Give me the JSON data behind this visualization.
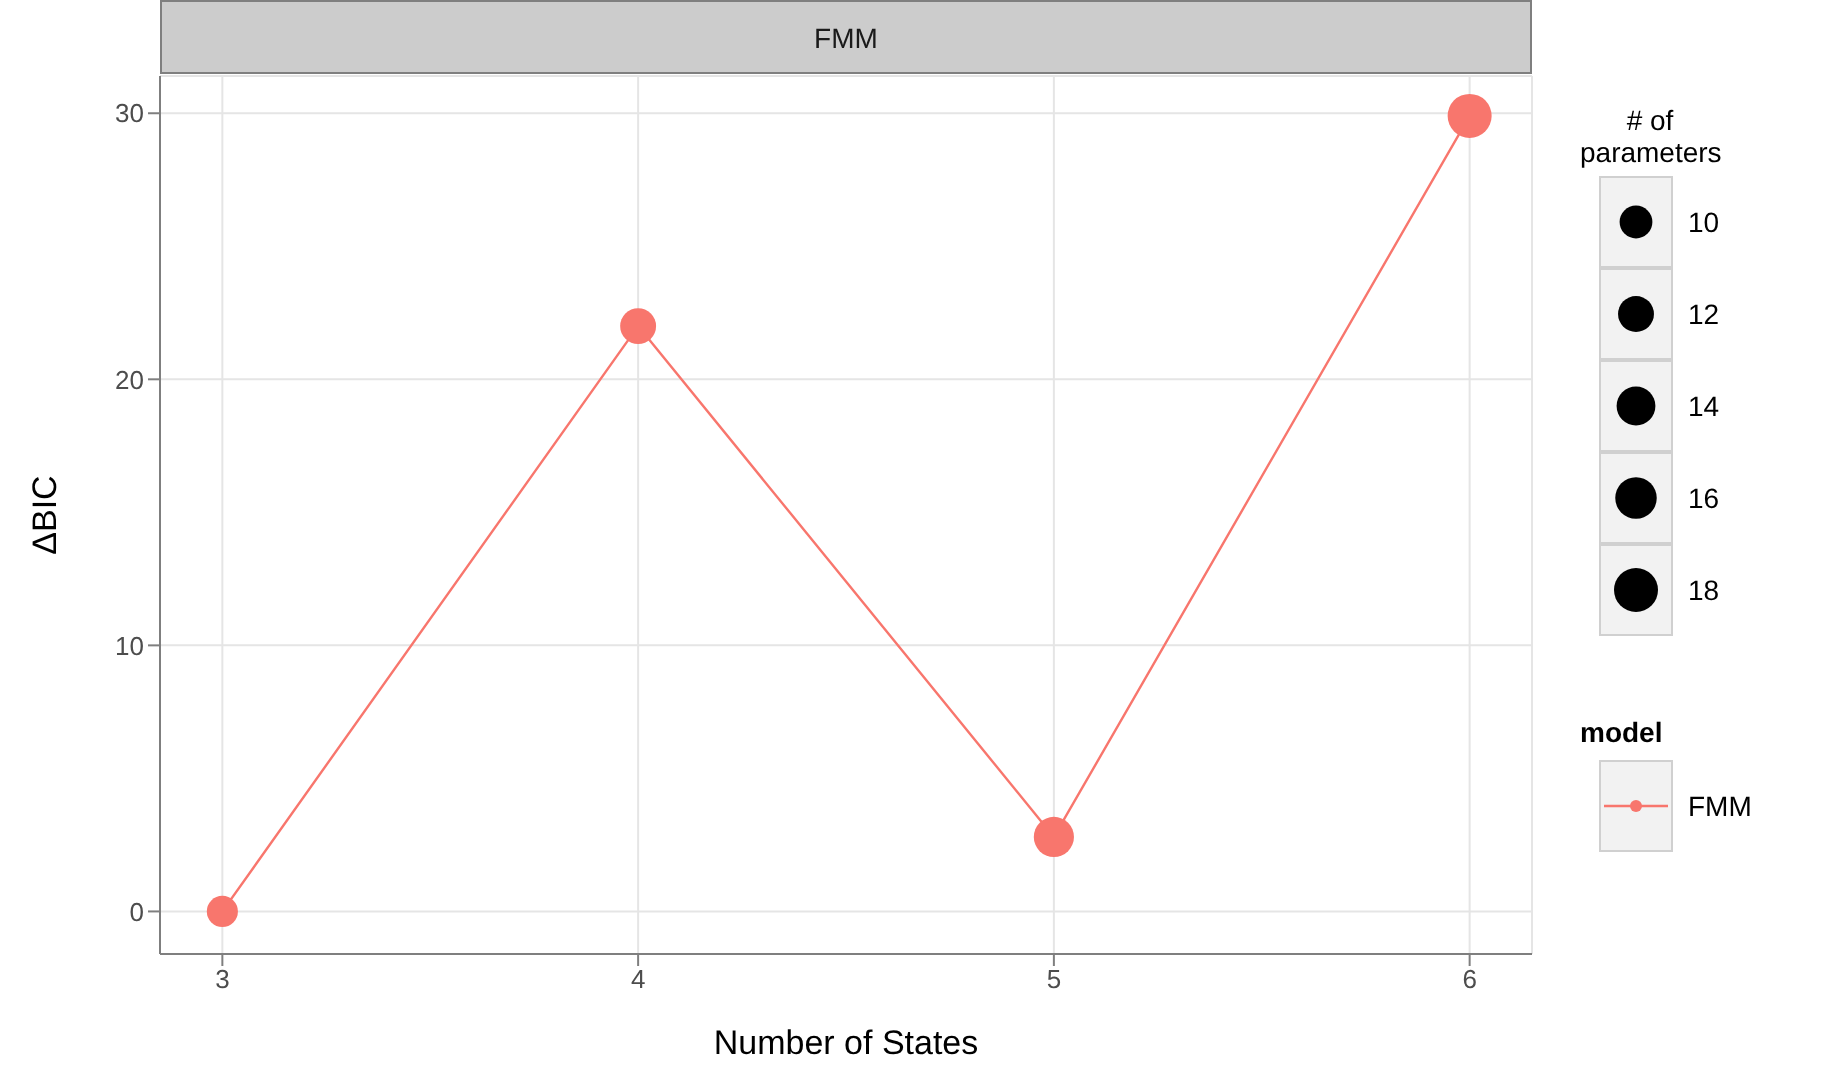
{
  "chart_data": {
    "type": "bubble",
    "title": "FMM",
    "xlabel": "Number of States",
    "ylabel": "ΔBIC",
    "legend_title": "model",
    "annotations": [
      "# of parameters"
    ],
    "x": [
      3,
      4,
      5,
      6
    ],
    "series": [
      {
        "name": "FMM",
        "type": "line",
        "color": "#f8766d",
        "values": [
          0,
          22,
          2.8,
          29.9
        ]
      },
      {
        "color": "#f8766d",
        "values": [
          0,
          22,
          2.8,
          29.9
        ],
        "sizes": [
          9,
          12,
          15,
          18
        ]
      }
    ],
    "size_legend": [
      10,
      12,
      14,
      16,
      18
    ],
    "xlim": [
      2.85,
      6.15
    ],
    "xticks": [
      3,
      4,
      5,
      6
    ],
    "ylim": [
      -1.6,
      31.4
    ],
    "yticks": [
      0,
      10,
      20,
      30
    ],
    "grid": true,
    "legend": "right",
    "marker": "circle",
    "line_style": "solid"
  }
}
